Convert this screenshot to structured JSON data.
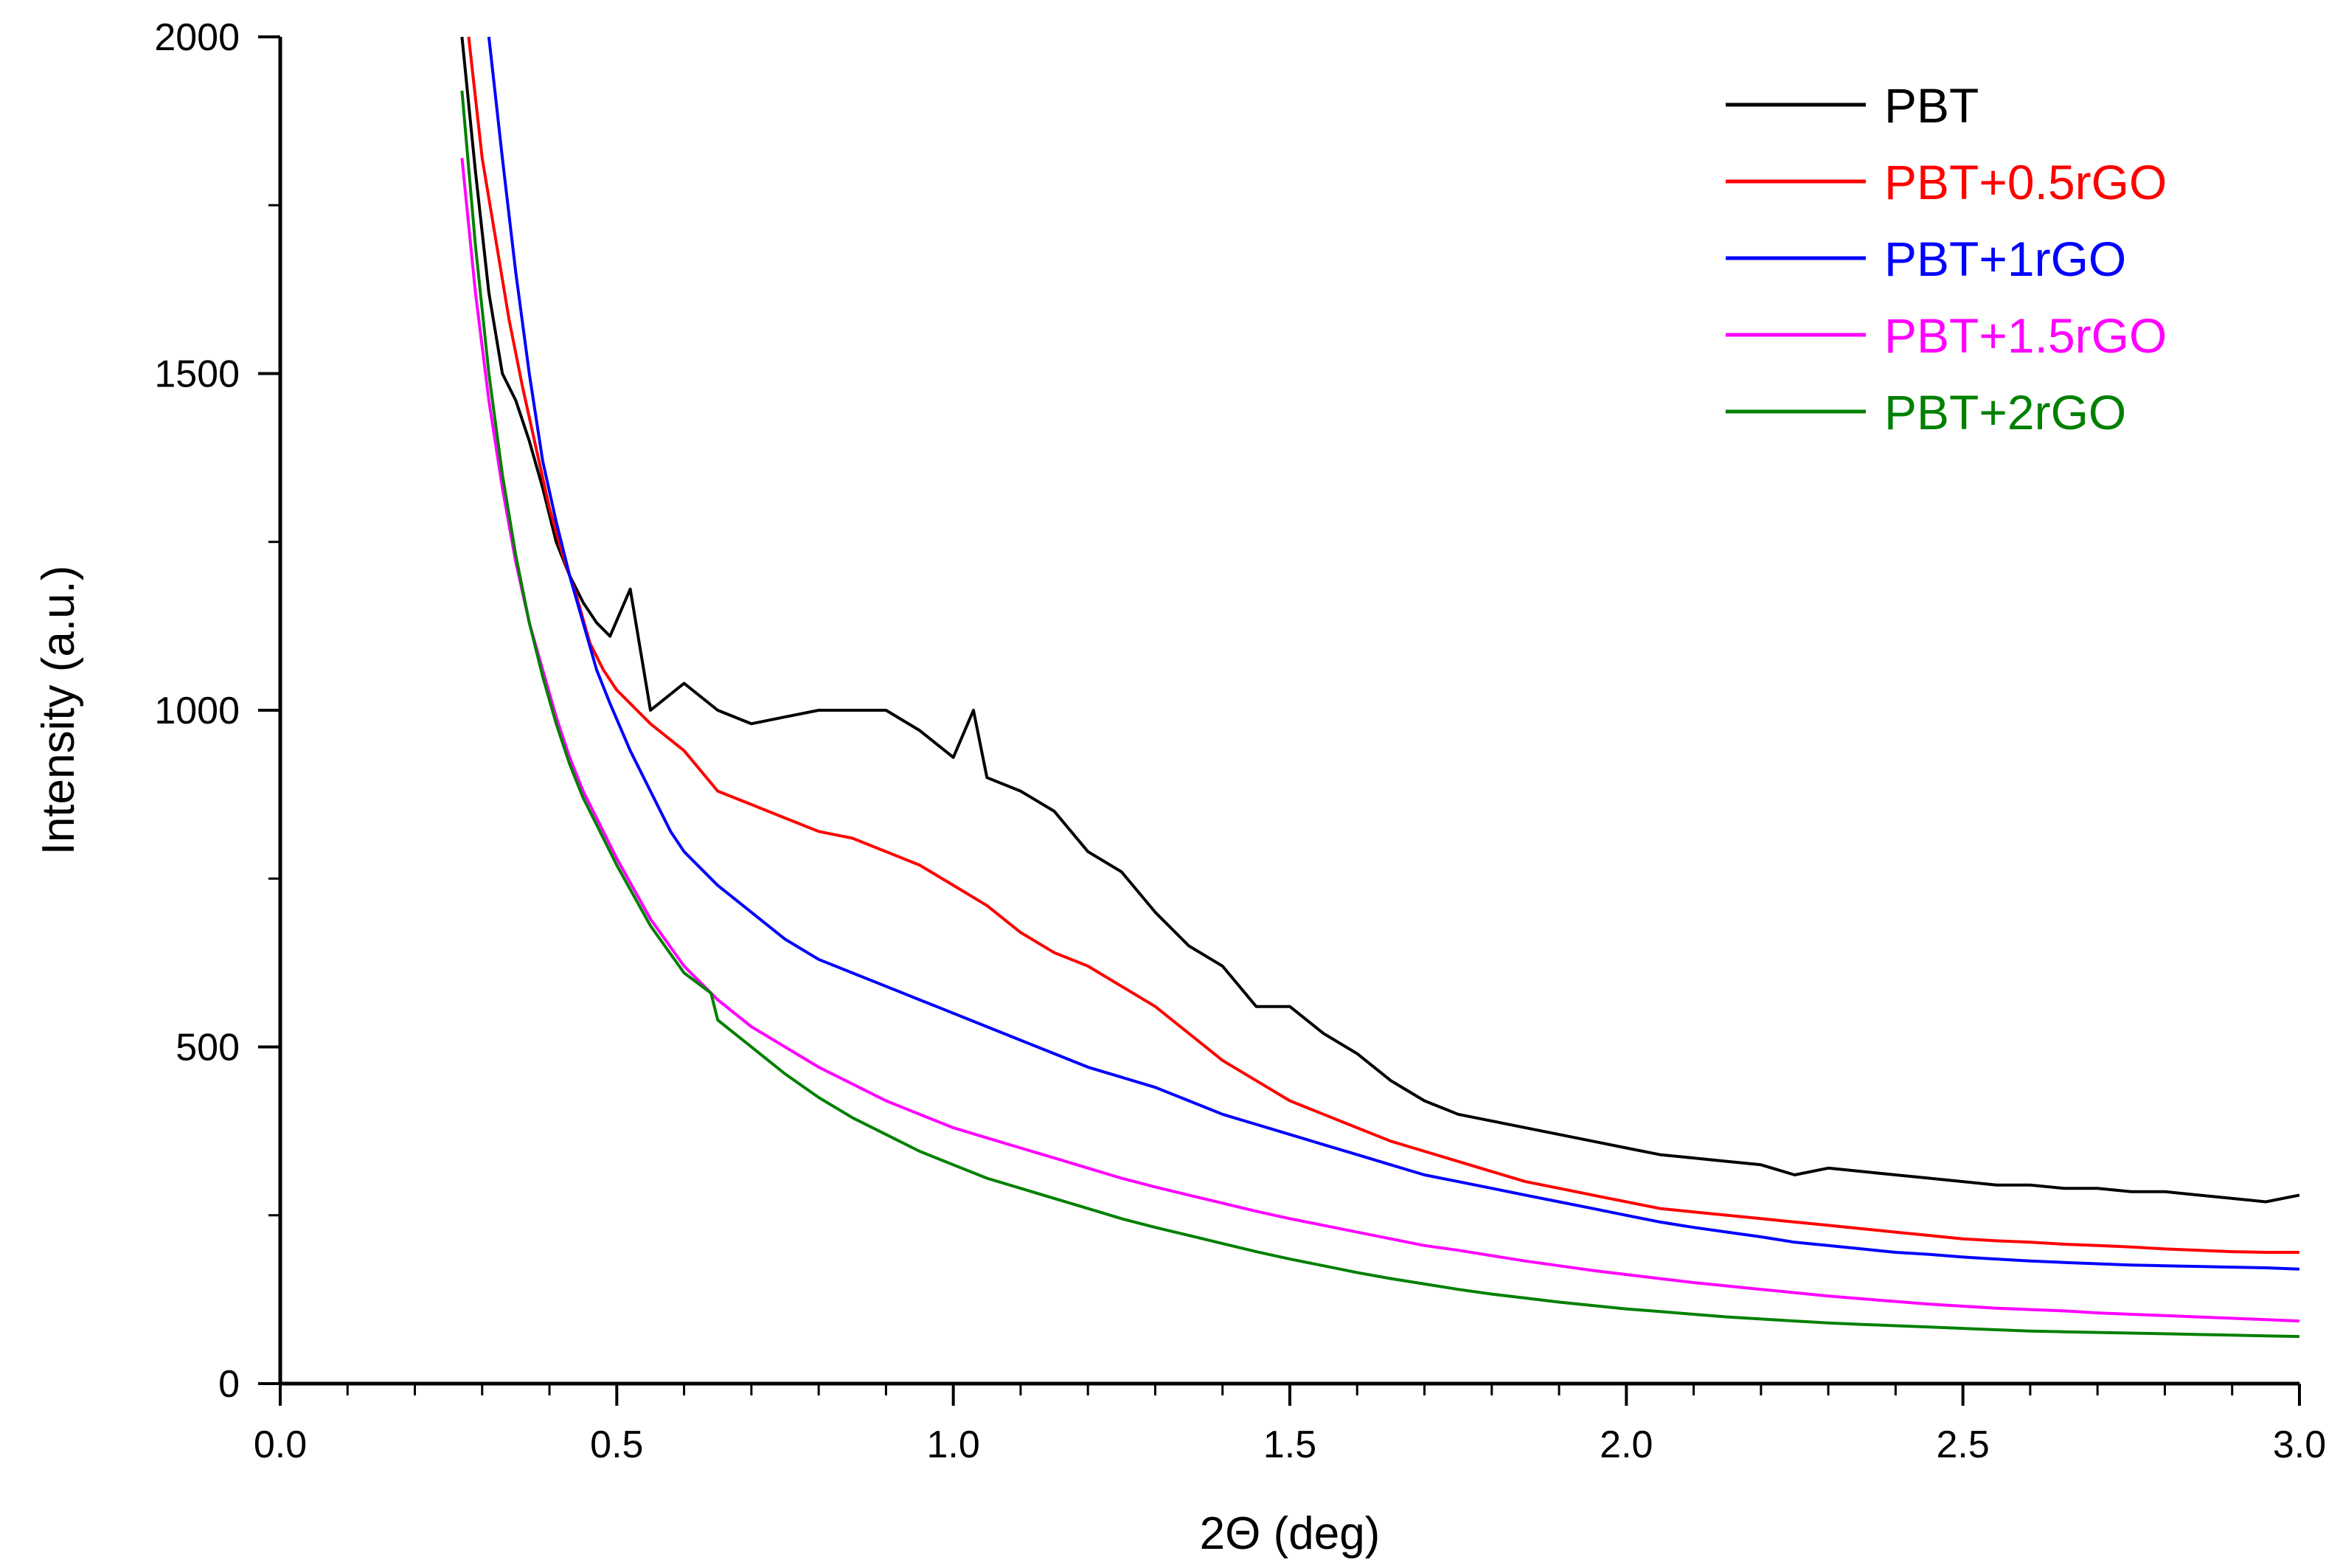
{
  "chart_data": {
    "type": "line",
    "title": "",
    "xlabel": "2Θ (deg)",
    "ylabel": "Intensity (a.u.)",
    "xlim": [
      0.0,
      3.0
    ],
    "ylim": [
      0,
      2000
    ],
    "xticks": [
      0.0,
      0.5,
      1.0,
      1.5,
      2.0,
      2.5,
      3.0
    ],
    "xtick_labels": [
      "0.0",
      "0.5",
      "1.0",
      "1.5",
      "2.0",
      "2.5",
      "3.0"
    ],
    "yticks": [
      0,
      500,
      1000,
      1500,
      2000
    ],
    "ytick_labels": [
      "0",
      "500",
      "1000",
      "1500",
      "2000"
    ],
    "grid": false,
    "legend_position": "top-right",
    "series": [
      {
        "name": "PBT",
        "color": "#000000",
        "x": [
          0.27,
          0.29,
          0.31,
          0.33,
          0.35,
          0.37,
          0.39,
          0.41,
          0.43,
          0.45,
          0.47,
          0.49,
          0.52,
          0.55,
          0.6,
          0.65,
          0.7,
          0.75,
          0.8,
          0.85,
          0.9,
          0.95,
          1.0,
          1.03,
          1.05,
          1.1,
          1.15,
          1.2,
          1.25,
          1.3,
          1.35,
          1.4,
          1.45,
          1.5,
          1.55,
          1.6,
          1.65,
          1.7,
          1.75,
          1.8,
          1.85,
          1.9,
          1.95,
          2.0,
          2.05,
          2.1,
          2.15,
          2.2,
          2.25,
          2.3,
          2.35,
          2.4,
          2.45,
          2.5,
          2.55,
          2.6,
          2.65,
          2.7,
          2.75,
          2.8,
          2.85,
          2.9,
          2.95,
          3.0
        ],
        "y": [
          2000,
          1800,
          1620,
          1500,
          1460,
          1400,
          1330,
          1250,
          1200,
          1160,
          1130,
          1110,
          1180,
          1000,
          1040,
          1000,
          980,
          990,
          1000,
          1000,
          1000,
          970,
          930,
          1000,
          900,
          880,
          850,
          790,
          760,
          700,
          650,
          620,
          560,
          560,
          520,
          490,
          450,
          420,
          400,
          390,
          380,
          370,
          360,
          350,
          340,
          335,
          330,
          325,
          310,
          320,
          315,
          310,
          305,
          300,
          295,
          295,
          290,
          290,
          285,
          285,
          280,
          275,
          270,
          280
        ]
      },
      {
        "name": "PBT+0.5rGO",
        "color": "#ff0000",
        "x": [
          0.28,
          0.3,
          0.32,
          0.34,
          0.36,
          0.38,
          0.4,
          0.42,
          0.44,
          0.46,
          0.48,
          0.5,
          0.53,
          0.55,
          0.6,
          0.65,
          0.7,
          0.75,
          0.8,
          0.85,
          0.9,
          0.95,
          1.0,
          1.05,
          1.1,
          1.15,
          1.2,
          1.25,
          1.3,
          1.35,
          1.4,
          1.45,
          1.5,
          1.55,
          1.6,
          1.65,
          1.7,
          1.75,
          1.8,
          1.85,
          1.9,
          1.95,
          2.0,
          2.05,
          2.1,
          2.15,
          2.2,
          2.25,
          2.3,
          2.35,
          2.4,
          2.45,
          2.5,
          2.55,
          2.6,
          2.65,
          2.7,
          2.75,
          2.8,
          2.85,
          2.9,
          2.95,
          3.0
        ],
        "y": [
          2000,
          1820,
          1700,
          1580,
          1480,
          1390,
          1300,
          1230,
          1170,
          1100,
          1060,
          1030,
          1000,
          980,
          940,
          880,
          860,
          840,
          820,
          810,
          790,
          770,
          740,
          710,
          670,
          640,
          620,
          590,
          560,
          520,
          480,
          450,
          420,
          400,
          380,
          360,
          345,
          330,
          315,
          300,
          290,
          280,
          270,
          260,
          255,
          250,
          245,
          240,
          235,
          230,
          225,
          220,
          215,
          212,
          210,
          207,
          205,
          203,
          200,
          198,
          196,
          195,
          195
        ]
      },
      {
        "name": "PBT+1rGO",
        "color": "#0000ff",
        "x": [
          0.31,
          0.33,
          0.35,
          0.37,
          0.39,
          0.41,
          0.43,
          0.45,
          0.47,
          0.49,
          0.52,
          0.55,
          0.58,
          0.6,
          0.65,
          0.7,
          0.75,
          0.8,
          0.85,
          0.9,
          0.95,
          1.0,
          1.05,
          1.1,
          1.15,
          1.2,
          1.25,
          1.3,
          1.35,
          1.4,
          1.45,
          1.5,
          1.55,
          1.6,
          1.65,
          1.7,
          1.75,
          1.8,
          1.85,
          1.9,
          1.95,
          2.0,
          2.05,
          2.1,
          2.15,
          2.2,
          2.25,
          2.3,
          2.35,
          2.4,
          2.45,
          2.5,
          2.55,
          2.6,
          2.65,
          2.7,
          2.75,
          2.8,
          2.85,
          2.9,
          2.95,
          3.0
        ],
        "y": [
          2000,
          1820,
          1650,
          1500,
          1370,
          1280,
          1200,
          1130,
          1060,
          1010,
          940,
          880,
          820,
          790,
          740,
          700,
          660,
          630,
          610,
          590,
          570,
          550,
          530,
          510,
          490,
          470,
          455,
          440,
          420,
          400,
          385,
          370,
          355,
          340,
          325,
          310,
          300,
          290,
          280,
          270,
          260,
          250,
          240,
          232,
          225,
          218,
          210,
          205,
          200,
          195,
          192,
          188,
          185,
          182,
          180,
          178,
          176,
          175,
          174,
          173,
          172,
          170
        ]
      },
      {
        "name": "PBT+1.5rGO",
        "color": "#ff00ff",
        "x": [
          0.27,
          0.29,
          0.31,
          0.33,
          0.35,
          0.37,
          0.39,
          0.41,
          0.43,
          0.45,
          0.47,
          0.5,
          0.55,
          0.6,
          0.65,
          0.7,
          0.75,
          0.8,
          0.85,
          0.9,
          0.95,
          1.0,
          1.05,
          1.1,
          1.15,
          1.2,
          1.25,
          1.3,
          1.35,
          1.4,
          1.45,
          1.5,
          1.55,
          1.6,
          1.65,
          1.7,
          1.75,
          1.8,
          1.85,
          1.9,
          1.95,
          2.0,
          2.05,
          2.1,
          2.15,
          2.2,
          2.25,
          2.3,
          2.35,
          2.4,
          2.45,
          2.5,
          2.55,
          2.6,
          2.65,
          2.7,
          2.75,
          2.8,
          2.85,
          2.9,
          2.95,
          3.0
        ],
        "y": [
          1820,
          1620,
          1460,
          1330,
          1220,
          1130,
          1060,
          990,
          930,
          880,
          840,
          780,
          690,
          620,
          570,
          530,
          500,
          470,
          445,
          420,
          400,
          380,
          365,
          350,
          335,
          320,
          305,
          292,
          280,
          268,
          256,
          245,
          235,
          225,
          215,
          205,
          198,
          190,
          182,
          175,
          168,
          162,
          156,
          150,
          145,
          140,
          135,
          130,
          126,
          122,
          118,
          115,
          112,
          110,
          108,
          105,
          103,
          101,
          99,
          97,
          95,
          93
        ]
      },
      {
        "name": "PBT+2rGO",
        "color": "#008000",
        "x": [
          0.27,
          0.29,
          0.31,
          0.33,
          0.35,
          0.37,
          0.39,
          0.41,
          0.43,
          0.45,
          0.47,
          0.5,
          0.55,
          0.6,
          0.64,
          0.65,
          0.7,
          0.75,
          0.8,
          0.85,
          0.9,
          0.95,
          1.0,
          1.05,
          1.1,
          1.15,
          1.2,
          1.25,
          1.3,
          1.35,
          1.4,
          1.45,
          1.5,
          1.55,
          1.6,
          1.65,
          1.7,
          1.75,
          1.8,
          1.85,
          1.9,
          1.95,
          2.0,
          2.05,
          2.1,
          2.15,
          2.2,
          2.25,
          2.3,
          2.35,
          2.4,
          2.45,
          2.5,
          2.55,
          2.6,
          2.65,
          2.7,
          2.75,
          2.8,
          2.85,
          2.9,
          2.95,
          3.0
        ],
        "y": [
          1920,
          1690,
          1500,
          1350,
          1230,
          1130,
          1050,
          980,
          920,
          870,
          830,
          770,
          680,
          610,
          580,
          540,
          500,
          460,
          425,
          395,
          370,
          345,
          325,
          305,
          290,
          275,
          260,
          245,
          232,
          220,
          208,
          196,
          185,
          175,
          165,
          156,
          148,
          140,
          133,
          127,
          121,
          116,
          111,
          107,
          103,
          99,
          96,
          93,
          90,
          88,
          86,
          84,
          82,
          80,
          78,
          77,
          76,
          75,
          74,
          73,
          72,
          71,
          70
        ]
      }
    ]
  }
}
